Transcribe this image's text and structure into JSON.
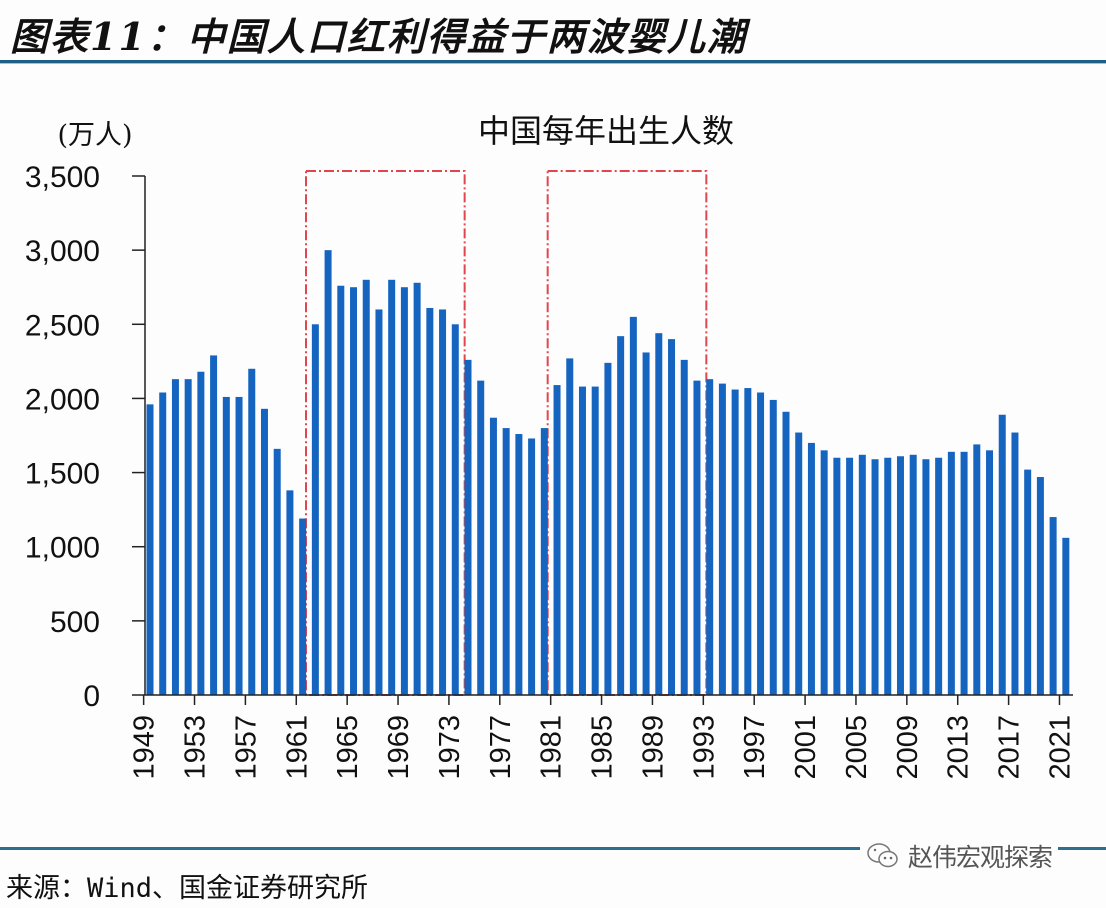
{
  "figure": {
    "title": "图表11：中国人口红利得益于两波婴儿潮",
    "source": "来源：Wind、国金证券研究所",
    "watermark": "赵伟宏观探索",
    "watermark_icon": "wechat-icon"
  },
  "colors": {
    "bar": "#1565c0",
    "highlight_box": "#e0474c",
    "rule": "#1f5f86"
  },
  "chart_data": {
    "type": "bar",
    "title": "中国每年出生人数",
    "ylabel": "(万人)",
    "xlabel": "",
    "ylim": [
      0,
      3500
    ],
    "yticks": [
      0,
      500,
      1000,
      1500,
      2000,
      2500,
      3000,
      3500
    ],
    "ytick_labels": [
      "0",
      "500",
      "1,000",
      "1,500",
      "2,000",
      "2,500",
      "3,000",
      "3,500"
    ],
    "xtick_labels": [
      "1949",
      "1953",
      "1957",
      "1961",
      "1965",
      "1969",
      "1973",
      "1977",
      "1981",
      "1985",
      "1989",
      "1993",
      "1997",
      "2001",
      "2005",
      "2009",
      "2013",
      "2017",
      "2021"
    ],
    "grid": false,
    "legend": "none",
    "categories": [
      1949,
      1950,
      1951,
      1952,
      1953,
      1954,
      1955,
      1956,
      1957,
      1958,
      1959,
      1960,
      1961,
      1962,
      1963,
      1964,
      1965,
      1966,
      1967,
      1968,
      1969,
      1970,
      1971,
      1972,
      1973,
      1974,
      1975,
      1976,
      1977,
      1978,
      1979,
      1980,
      1981,
      1982,
      1983,
      1984,
      1985,
      1986,
      1987,
      1988,
      1989,
      1990,
      1991,
      1992,
      1993,
      1994,
      1995,
      1996,
      1997,
      1998,
      1999,
      2000,
      2001,
      2002,
      2003,
      2004,
      2005,
      2006,
      2007,
      2008,
      2009,
      2010,
      2011,
      2012,
      2013,
      2014,
      2015,
      2016,
      2017,
      2018,
      2019,
      2020,
      2021
    ],
    "values": [
      1960,
      2040,
      2130,
      2130,
      2180,
      2290,
      2010,
      2010,
      2200,
      1930,
      1660,
      1380,
      1190,
      2500,
      3000,
      2760,
      2750,
      2800,
      2600,
      2800,
      2750,
      2780,
      2610,
      2600,
      2500,
      2260,
      2120,
      1870,
      1800,
      1760,
      1730,
      1800,
      2090,
      2270,
      2080,
      2080,
      2240,
      2420,
      2550,
      2310,
      2440,
      2400,
      2260,
      2120,
      2130,
      2100,
      2060,
      2070,
      2040,
      1990,
      1910,
      1770,
      1700,
      1650,
      1600,
      1600,
      1620,
      1590,
      1600,
      1610,
      1620,
      1590,
      1600,
      1640,
      1640,
      1690,
      1650,
      1890,
      1770,
      1520,
      1470,
      1200,
      1060
    ],
    "annotations": [
      {
        "type": "dashed-box",
        "label": "baby-boom-1",
        "x_range": [
          1962,
          1973
        ]
      },
      {
        "type": "dashed-box",
        "label": "baby-boom-2",
        "x_range": [
          1981,
          1992
        ]
      }
    ]
  }
}
